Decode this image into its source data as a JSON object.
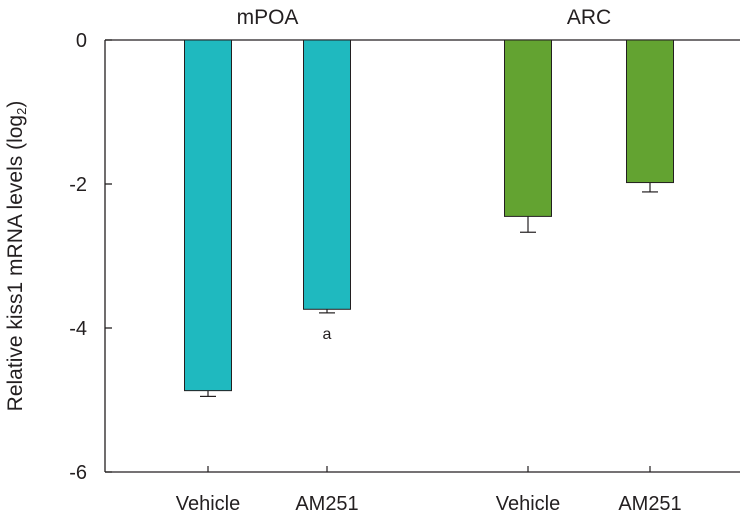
{
  "chart_data": {
    "type": "bar",
    "ylabel": "Relative kiss1 mRNA levels (log",
    "ylabel_subscript": "2",
    "ylabel_suffix": ")",
    "ylim": [
      -6,
      0
    ],
    "yticks": [
      0,
      -2,
      -4,
      -6
    ],
    "ytick_labels": [
      "0",
      "-2",
      "-4",
      "-6"
    ],
    "groups": [
      {
        "name": "mPOA",
        "color": "#1fb9bf",
        "bars": [
          {
            "category": "Vehicle",
            "value": -4.87,
            "error": 0.08,
            "annotation": ""
          },
          {
            "category": "AM251",
            "value": -3.74,
            "error": 0.05,
            "annotation": "a"
          }
        ]
      },
      {
        "name": "ARC",
        "color": "#63a331",
        "bars": [
          {
            "category": "Vehicle",
            "value": -2.45,
            "error": 0.22,
            "annotation": ""
          },
          {
            "category": "AM251",
            "value": -1.98,
            "error": 0.13,
            "annotation": ""
          }
        ]
      }
    ],
    "grid": false,
    "legend": "none"
  }
}
